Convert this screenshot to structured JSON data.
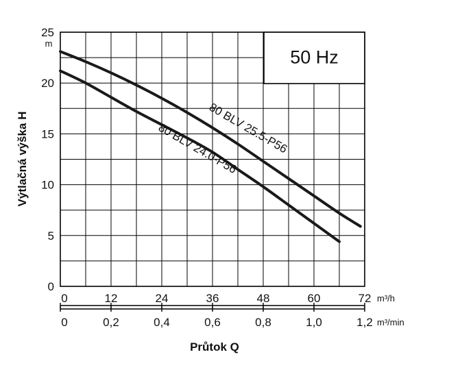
{
  "chart_data": {
    "type": "line",
    "badge": "50 Hz",
    "ylabel": "Výtlačná výška H",
    "y_unit": "m",
    "ylim": [
      0,
      25
    ],
    "y_ticks": [
      "0",
      "5",
      "10",
      "15",
      "20",
      "25"
    ],
    "xlabel": "Průtok Q",
    "x_primary": {
      "unit": "m³/h",
      "lim": [
        0,
        72
      ],
      "ticks": [
        "0",
        "12",
        "24",
        "36",
        "48",
        "60",
        "72"
      ]
    },
    "x_secondary": {
      "unit": "m³/min",
      "lim": [
        0,
        1.2
      ],
      "ticks": [
        "0",
        "0,2",
        "0,4",
        "0,6",
        "0,8",
        "1,0",
        "1,2"
      ]
    },
    "grid": true,
    "series": [
      {
        "name": "80 BLV 25.5-P56",
        "x": [
          0,
          6,
          12,
          18,
          24,
          30,
          36,
          42,
          48,
          54,
          60,
          66,
          71
        ],
        "y": [
          23.1,
          22.1,
          21.0,
          19.8,
          18.5,
          17.1,
          15.6,
          14.0,
          12.3,
          10.6,
          8.9,
          7.2,
          5.9
        ]
      },
      {
        "name": "80 BLV 24.0-P56",
        "x": [
          0,
          6,
          12,
          18,
          24,
          30,
          36,
          42,
          48,
          54,
          60,
          66
        ],
        "y": [
          21.2,
          20.0,
          18.6,
          17.2,
          15.9,
          14.6,
          13.2,
          11.5,
          9.8,
          8.0,
          6.2,
          4.4
        ]
      }
    ]
  }
}
